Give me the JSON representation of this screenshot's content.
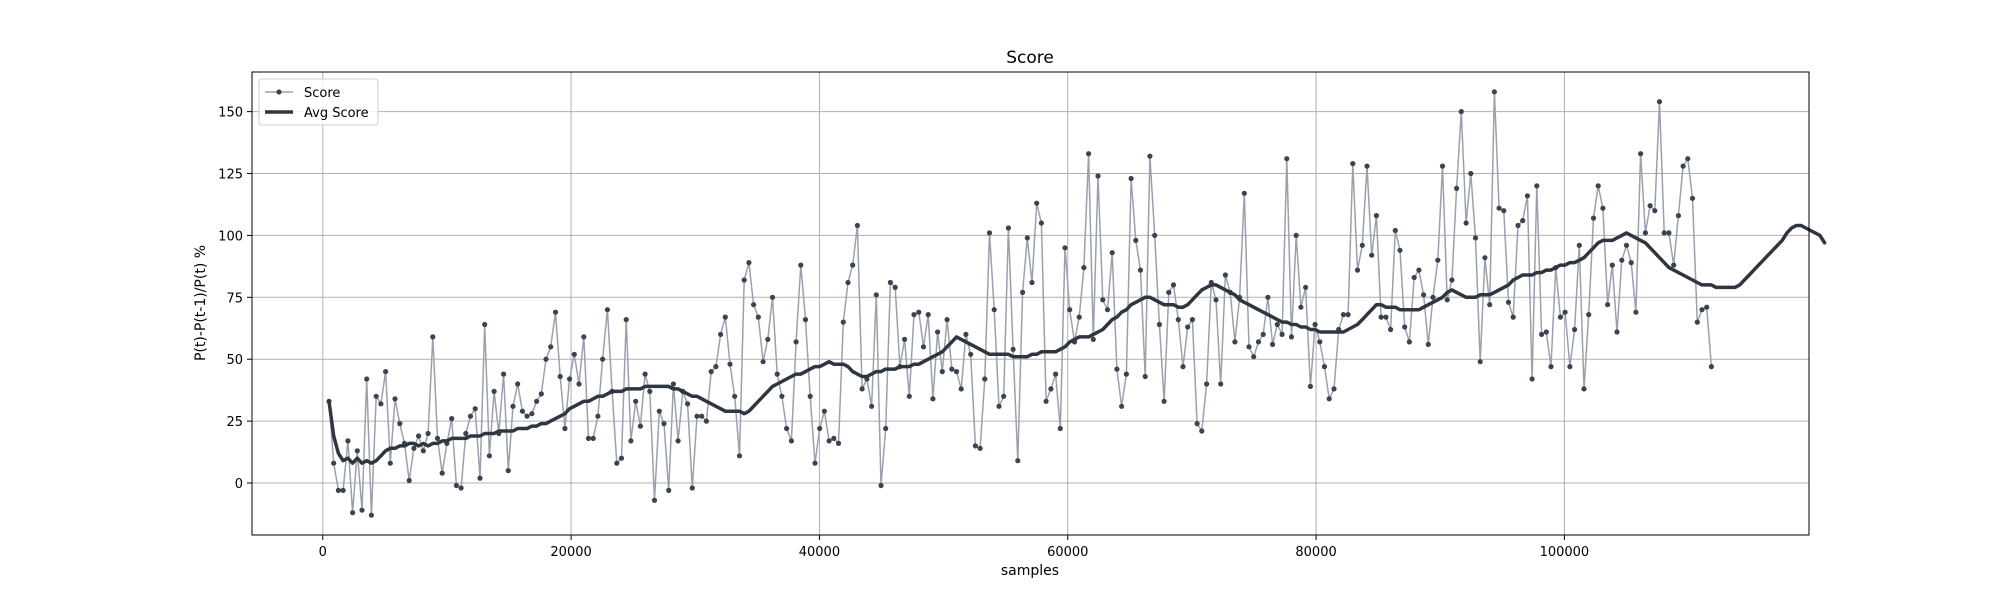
{
  "chart_data": {
    "type": "line",
    "title": "Score",
    "xlabel": "samples",
    "ylabel": "P(t)-P(t-1)/P(t) %",
    "xlim": [
      -5700,
      119700
    ],
    "ylim": [
      -21,
      166
    ],
    "xticks": [
      0,
      20000,
      40000,
      60000,
      80000,
      100000
    ],
    "xtick_labels": [
      "0",
      "20000",
      "40000",
      "60000",
      "80000",
      "100000"
    ],
    "yticks": [
      0,
      25,
      50,
      75,
      100,
      125,
      150
    ],
    "ytick_labels": [
      "0",
      "25",
      "50",
      "75",
      "100",
      "125",
      "150"
    ],
    "grid": true,
    "legend_position": "top-left",
    "colors": {
      "score": "#9aa1ae",
      "score_marker": "#3b4250",
      "avg": "#2f3640"
    },
    "series": [
      {
        "name": "Score",
        "style": "line-with-markers",
        "x_start": 500,
        "x_step": 380,
        "values": [
          33,
          8,
          -3,
          -3,
          17,
          -12,
          13,
          -11,
          42,
          -13,
          35,
          32,
          45,
          8,
          34,
          24,
          16,
          1,
          14,
          19,
          13,
          20,
          59,
          18,
          4,
          16,
          26,
          -1,
          -2,
          20,
          27,
          30,
          2,
          64,
          11,
          37,
          20,
          44,
          5,
          31,
          40,
          29,
          27,
          28,
          33,
          36,
          50,
          55,
          69,
          43,
          22,
          42,
          52,
          40,
          59,
          18,
          18,
          27,
          50,
          70,
          37,
          8,
          10,
          66,
          17,
          33,
          23,
          44,
          37,
          -7,
          29,
          24,
          -3,
          40,
          17,
          37,
          32,
          -2,
          27,
          27,
          25,
          45,
          47,
          60,
          67,
          48,
          35,
          11,
          82,
          89,
          72,
          67,
          49,
          58,
          75,
          44,
          35,
          22,
          17,
          57,
          88,
          66,
          35,
          8,
          22,
          29,
          17,
          18,
          16,
          65,
          81,
          88,
          104,
          38,
          42,
          31,
          76,
          -1,
          22,
          81,
          79,
          47,
          58,
          35,
          68,
          69,
          55,
          68,
          34,
          61,
          45,
          66,
          46,
          45,
          38,
          60,
          52,
          15,
          14,
          42,
          101,
          70,
          31,
          35,
          103,
          54,
          9,
          77,
          99,
          81,
          113,
          105,
          33,
          38,
          44,
          22,
          95,
          70,
          57,
          67,
          87,
          133,
          58,
          124,
          74,
          70,
          93,
          46,
          31,
          44,
          123,
          98,
          86,
          43,
          132,
          100,
          64,
          33,
          77,
          80,
          66,
          47,
          63,
          66,
          24,
          21,
          40,
          81,
          74,
          40,
          84,
          77,
          57,
          75,
          117,
          55,
          51,
          57,
          60,
          75,
          56,
          64,
          60,
          131,
          59,
          100,
          71,
          79,
          39,
          64,
          57,
          47,
          34,
          38,
          62,
          68,
          68,
          129,
          86,
          96,
          128,
          92,
          108,
          67,
          67,
          62,
          102,
          94,
          63,
          57,
          83,
          86,
          76,
          56,
          75,
          90,
          128,
          74,
          82,
          119,
          150,
          105,
          125,
          99,
          49,
          91,
          72,
          158,
          111,
          110,
          73,
          67,
          104,
          106,
          116,
          42,
          120,
          60,
          61,
          47,
          87,
          67,
          69,
          47,
          62,
          96,
          38,
          68,
          107,
          120,
          111,
          72,
          88,
          61,
          90,
          96,
          89,
          69,
          133,
          101,
          112,
          110,
          154,
          101,
          101,
          88,
          108,
          128,
          131,
          115,
          65,
          70,
          71,
          47
        ]
      },
      {
        "name": "Avg Score",
        "style": "thick-line",
        "x_start": 500,
        "x_step": 380,
        "values": [
          33,
          19,
          12,
          9,
          10,
          8,
          10,
          8,
          9,
          8,
          9,
          11,
          13,
          14,
          14,
          15,
          15,
          16,
          16,
          15,
          16,
          15,
          16,
          16,
          17,
          17,
          18,
          18,
          18,
          18,
          19,
          19,
          19,
          20,
          20,
          20,
          21,
          21,
          21,
          21,
          22,
          22,
          22,
          23,
          23,
          24,
          24,
          25,
          26,
          27,
          28,
          30,
          31,
          32,
          33,
          33,
          34,
          35,
          35,
          36,
          37,
          37,
          37,
          38,
          38,
          38,
          38,
          39,
          39,
          39,
          39,
          39,
          39,
          38,
          38,
          37,
          36,
          35,
          35,
          34,
          33,
          32,
          31,
          30,
          29,
          29,
          29,
          29,
          28,
          29,
          31,
          33,
          35,
          37,
          39,
          40,
          41,
          42,
          43,
          44,
          44,
          45,
          46,
          47,
          47,
          48,
          49,
          48,
          48,
          48,
          47,
          45,
          44,
          43,
          43,
          44,
          45,
          45,
          46,
          46,
          46,
          47,
          47,
          47,
          48,
          48,
          49,
          50,
          51,
          52,
          53,
          55,
          57,
          59,
          58,
          57,
          56,
          55,
          54,
          53,
          52,
          52,
          52,
          52,
          52,
          51,
          51,
          51,
          51,
          52,
          52,
          53,
          53,
          53,
          53,
          54,
          55,
          57,
          58,
          59,
          59,
          59,
          60,
          61,
          62,
          64,
          66,
          67,
          69,
          70,
          72,
          73,
          74,
          75,
          75,
          74,
          73,
          72,
          72,
          72,
          71,
          71,
          72,
          74,
          76,
          78,
          79,
          80,
          80,
          79,
          78,
          77,
          76,
          74,
          73,
          72,
          71,
          70,
          69,
          68,
          67,
          66,
          65,
          65,
          64,
          64,
          63,
          63,
          62,
          62,
          61,
          61,
          61,
          61,
          61,
          61,
          62,
          63,
          64,
          66,
          68,
          70,
          72,
          72,
          71,
          71,
          71,
          70,
          70,
          70,
          70,
          70,
          71,
          72,
          73,
          74,
          75,
          77,
          78,
          77,
          76,
          75,
          75,
          75,
          76,
          76,
          76,
          77,
          78,
          79,
          80,
          82,
          83,
          84,
          84,
          84,
          85,
          85,
          86,
          86,
          87,
          88,
          88,
          89,
          89,
          90,
          91,
          93,
          95,
          97,
          98,
          98,
          98,
          99,
          100,
          101,
          100,
          99,
          98,
          97,
          95,
          93,
          91,
          89,
          87,
          86,
          85,
          84,
          83,
          82,
          81,
          80,
          80,
          80,
          79,
          79,
          79,
          79,
          79,
          80,
          82,
          84,
          86,
          88,
          90,
          92,
          94,
          96,
          98,
          101,
          103,
          104,
          104,
          103,
          102,
          101,
          100,
          97
        ]
      }
    ]
  }
}
